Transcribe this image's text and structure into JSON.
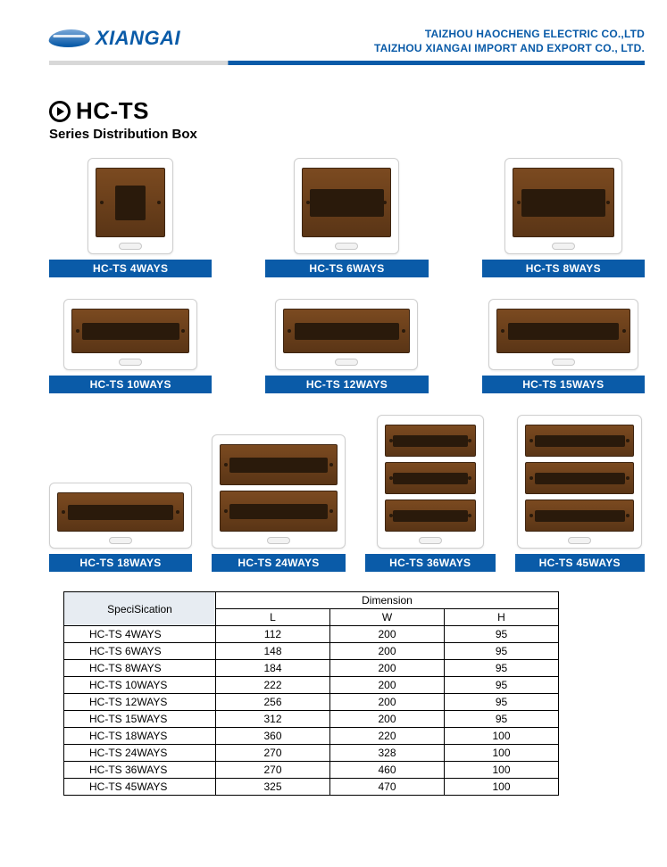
{
  "header": {
    "brand": "XIANGAI",
    "company_line1": "TAIZHOU HAOCHENG ELECTRIC CO.,LTD",
    "company_line2": "TAIZHOU XIANGAI IMPORT AND EXPORT CO., LTD."
  },
  "title": {
    "code": "HC-TS",
    "subtitle": "Series Distribution Box"
  },
  "colors": {
    "brand_blue": "#0a5ba8",
    "bar_blue": "#0a5ba8",
    "window_brown_top": "#7b4a20",
    "window_brown_bottom": "#5a3516",
    "table_header_bg": "#e7ecf2",
    "divider_grey": "#d8d8d8"
  },
  "products_row1": [
    {
      "label": "HC-TS  4WAYS",
      "variant": "sm"
    },
    {
      "label": "HC-TS  6WAYS",
      "variant": "sm-wide"
    },
    {
      "label": "HC-TS  8WAYS",
      "variant": "sm-wide"
    }
  ],
  "products_row2": [
    {
      "label": "HC-TS  10WAYS",
      "variant": "md"
    },
    {
      "label": "HC-TS  12WAYS",
      "variant": "md"
    },
    {
      "label": "HC-TS  15WAYS",
      "variant": "md"
    }
  ],
  "products_row3": [
    {
      "label": "HC-TS  18WAYS",
      "variant": "lg"
    },
    {
      "label": "HC-TS  24WAYS",
      "variant": "dbl"
    },
    {
      "label": "HC-TS  36WAYS",
      "variant": "stack3"
    },
    {
      "label": "HC-TS  45WAYS",
      "variant": "stack3"
    }
  ],
  "table": {
    "spec_header": "SpeciSication",
    "dim_header": "Dimension",
    "columns": [
      "L",
      "W",
      "H"
    ],
    "rows": [
      {
        "model": "HC-TS  4WAYS",
        "L": "112",
        "W": "200",
        "H": "95"
      },
      {
        "model": "HC-TS  6WAYS",
        "L": "148",
        "W": "200",
        "H": "95"
      },
      {
        "model": "HC-TS  8WAYS",
        "L": "184",
        "W": "200",
        "H": "95"
      },
      {
        "model": "HC-TS  10WAYS",
        "L": "222",
        "W": "200",
        "H": "95"
      },
      {
        "model": "HC-TS  12WAYS",
        "L": "256",
        "W": "200",
        "H": "95"
      },
      {
        "model": "HC-TS  15WAYS",
        "L": "312",
        "W": "200",
        "H": "95"
      },
      {
        "model": "HC-TS  18WAYS",
        "L": "360",
        "W": "220",
        "H": "100"
      },
      {
        "model": "HC-TS  24WAYS",
        "L": "270",
        "W": "328",
        "H": "100"
      },
      {
        "model": "HC-TS  36WAYS",
        "L": "270",
        "W": "460",
        "H": "100"
      },
      {
        "model": "HC-TS  45WAYS",
        "L": "325",
        "W": "470",
        "H": "100"
      }
    ]
  }
}
